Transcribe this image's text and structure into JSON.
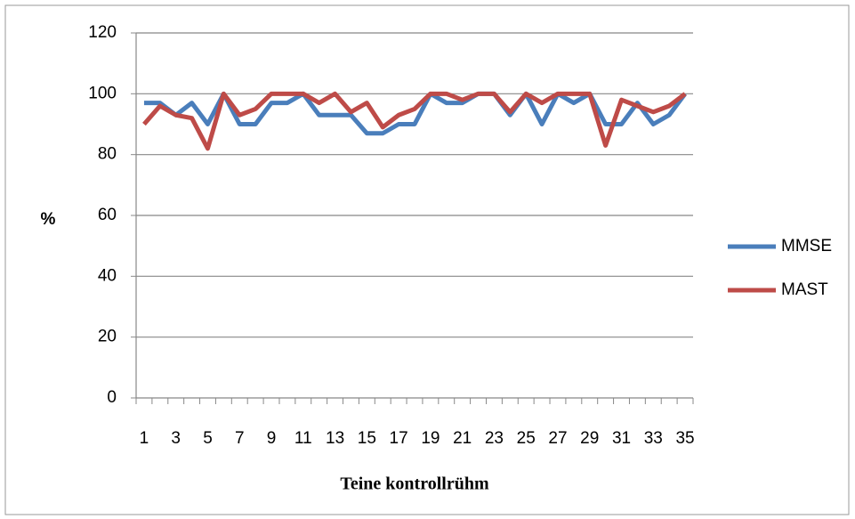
{
  "chart_data": {
    "type": "line",
    "x_label": "Teine kontrollrühm",
    "y_label": "%",
    "categories": [
      1,
      null,
      3,
      null,
      5,
      null,
      7,
      null,
      9,
      null,
      11,
      null,
      13,
      null,
      15,
      null,
      17,
      null,
      19,
      null,
      21,
      null,
      23,
      null,
      25,
      null,
      27,
      null,
      29,
      null,
      31,
      null,
      33,
      null,
      35
    ],
    "series": [
      {
        "name": "MMSE",
        "color": "#4a7ebb",
        "values": [
          97,
          97,
          93,
          97,
          90,
          100,
          90,
          90,
          97,
          97,
          100,
          93,
          93,
          93,
          87,
          87,
          90,
          90,
          100,
          97,
          97,
          100,
          100,
          93,
          100,
          90,
          100,
          97,
          100,
          90,
          90,
          97,
          90,
          93,
          100
        ]
      },
      {
        "name": "MAST",
        "color": "#be4b48",
        "values": [
          90,
          96,
          93,
          92,
          82,
          100,
          93,
          95,
          100,
          100,
          100,
          97,
          100,
          94,
          97,
          89,
          93,
          95,
          100,
          100,
          98,
          100,
          100,
          94,
          100,
          97,
          100,
          100,
          100,
          83,
          98,
          96,
          94,
          96,
          100
        ]
      }
    ],
    "ylim": [
      0,
      120
    ],
    "yticks": [
      0,
      20,
      40,
      60,
      80,
      100,
      120
    ],
    "grid": true,
    "legend": "right"
  }
}
